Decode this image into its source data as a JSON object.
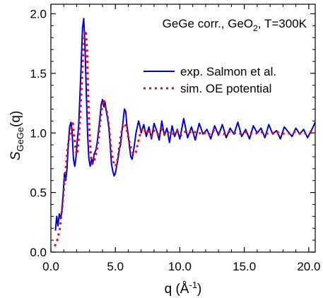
{
  "chart_data": {
    "type": "line",
    "annotation": {
      "prefix": "GeGe corr., GeO",
      "subscript": "2",
      "suffix": ", T=300K"
    },
    "xlabel": {
      "main": "q (Å",
      "sup": "-1",
      "tail": ")"
    },
    "ylabel": {
      "main": "S",
      "sub": "GeGe",
      "tail": "(q)"
    },
    "xlim": [
      0,
      20.5
    ],
    "ylim": [
      0,
      2.08
    ],
    "xticks": [
      0,
      5,
      10,
      15,
      20
    ],
    "xtick_labels": [
      "0.0",
      "5.0",
      "10.0",
      "15.0",
      "20.0"
    ],
    "yticks": [
      0,
      0.5,
      1.0,
      1.5,
      2.0
    ],
    "ytick_labels": [
      "0.0",
      "0.5",
      "1.0",
      "1.5",
      "2.0"
    ],
    "grid": false,
    "legend_placement": "right",
    "series": [
      {
        "name": "exp. Salmon et al.",
        "color": "#0000dd",
        "style": "solid",
        "x": [
          0.35,
          0.45,
          0.55,
          0.65,
          0.75,
          0.85,
          0.95,
          1.05,
          1.15,
          1.25,
          1.35,
          1.45,
          1.55,
          1.65,
          1.75,
          1.85,
          1.95,
          2.05,
          2.15,
          2.25,
          2.35,
          2.45,
          2.55,
          2.65,
          2.75,
          2.85,
          2.95,
          3.05,
          3.15,
          3.25,
          3.35,
          3.5,
          3.6,
          3.7,
          3.8,
          3.9,
          4.0,
          4.1,
          4.2,
          4.3,
          4.4,
          4.5,
          4.6,
          4.7,
          4.8,
          4.9,
          5.0,
          5.1,
          5.2,
          5.3,
          5.4,
          5.5,
          5.6,
          5.7,
          5.8,
          5.9,
          6.0,
          6.1,
          6.2,
          6.3,
          6.4,
          6.5,
          6.6,
          6.7,
          6.8,
          6.9,
          7.0,
          7.2,
          7.4,
          7.6,
          7.8,
          8.0,
          8.2,
          8.4,
          8.6,
          8.8,
          9.0,
          9.2,
          9.4,
          9.6,
          9.8,
          10.0,
          10.3,
          10.6,
          10.9,
          11.2,
          11.5,
          11.8,
          12.1,
          12.4,
          12.7,
          13.0,
          13.3,
          13.6,
          13.9,
          14.2,
          14.5,
          14.8,
          15.1,
          15.4,
          15.7,
          16.0,
          16.3,
          16.6,
          16.9,
          17.2,
          17.5,
          17.8,
          18.1,
          18.4,
          18.7,
          19.0,
          19.3,
          19.6,
          19.9,
          20.2,
          20.5
        ],
        "y": [
          0.18,
          0.3,
          0.22,
          0.32,
          0.28,
          0.34,
          0.48,
          0.66,
          0.6,
          0.7,
          0.9,
          1.05,
          1.09,
          1.0,
          0.78,
          0.72,
          0.8,
          0.94,
          1.05,
          1.3,
          1.58,
          1.88,
          1.96,
          1.72,
          1.32,
          0.98,
          0.78,
          0.72,
          0.78,
          0.74,
          0.82,
          0.86,
          0.93,
          1.02,
          1.12,
          1.24,
          1.28,
          1.22,
          1.26,
          1.18,
          1.12,
          1.04,
          0.9,
          0.74,
          0.68,
          0.64,
          0.66,
          0.72,
          0.78,
          0.86,
          0.9,
          1.0,
          1.1,
          1.2,
          1.18,
          1.06,
          0.98,
          0.88,
          0.8,
          0.78,
          0.84,
          0.92,
          1.0,
          1.05,
          1.1,
          1.06,
          1.0,
          1.07,
          0.97,
          1.05,
          0.95,
          1.08,
          1.02,
          0.94,
          1.1,
          0.98,
          1.04,
          0.92,
          1.06,
          0.97,
          1.03,
          0.95,
          1.12,
          0.96,
          1.05,
          0.94,
          1.08,
          0.99,
          1.03,
          0.95,
          1.06,
          0.98,
          1.07,
          0.96,
          1.04,
          0.99,
          1.09,
          0.97,
          1.03,
          0.95,
          1.06,
          1.0,
          1.04,
          0.96,
          1.07,
          0.99,
          1.02,
          0.95,
          1.05,
          1.01,
          0.97,
          1.04,
          0.99,
          1.03,
          0.96,
          1.02,
          1.09
        ]
      },
      {
        "name": "sim. OE potential",
        "color": "#ff0000",
        "style": "dotted",
        "x": [
          0.3,
          0.5,
          0.7,
          0.9,
          1.1,
          1.3,
          1.5,
          1.7,
          1.9,
          2.0,
          2.1,
          2.2,
          2.3,
          2.4,
          2.5,
          2.6,
          2.7,
          2.8,
          2.9,
          3.0,
          3.1,
          3.2,
          3.3,
          3.4,
          3.5,
          3.6,
          3.7,
          3.8,
          3.9,
          4.0,
          4.1,
          4.2,
          4.3,
          4.4,
          4.5,
          4.6,
          4.7,
          4.8,
          4.9,
          5.0,
          5.1,
          5.2,
          5.3,
          5.4,
          5.5,
          5.6,
          5.7,
          5.8,
          5.9,
          6.0,
          6.2,
          6.4,
          6.6,
          6.8,
          7.0,
          7.2,
          7.4,
          7.6,
          7.8,
          8.0,
          8.3,
          8.6,
          8.9,
          9.2,
          9.5,
          9.8,
          10.1,
          10.4,
          10.7,
          11.0,
          11.4,
          11.8,
          12.2,
          12.6,
          13.0,
          13.4,
          13.8,
          14.2,
          14.6,
          15.0,
          15.4,
          15.8,
          16.2,
          16.6,
          17.0,
          17.4,
          17.8,
          18.2,
          18.6,
          19.0,
          19.4,
          19.8,
          20.2,
          20.5
        ],
        "y": [
          0.05,
          0.1,
          0.2,
          0.4,
          0.64,
          0.88,
          1.0,
          1.08,
          0.88,
          0.82,
          0.86,
          1.0,
          1.2,
          1.42,
          1.65,
          1.82,
          1.86,
          1.7,
          1.3,
          1.0,
          0.8,
          0.74,
          0.76,
          0.78,
          0.82,
          0.88,
          0.96,
          1.06,
          1.16,
          1.24,
          1.28,
          1.22,
          1.2,
          1.14,
          1.05,
          0.95,
          0.85,
          0.78,
          0.74,
          0.72,
          0.74,
          0.8,
          0.88,
          0.96,
          1.02,
          1.06,
          1.08,
          1.06,
          1.02,
          0.96,
          0.88,
          0.82,
          0.84,
          0.94,
          1.02,
          1.04,
          0.99,
          1.03,
          0.97,
          1.02,
          0.99,
          1.03,
          0.98,
          1.01,
          0.99,
          1.02,
          0.98,
          1.01,
          1.0,
          1.02,
          0.99,
          1.01,
          0.98,
          1.02,
          1.0,
          0.99,
          1.01,
          1.0,
          0.99,
          1.01,
          1.0,
          0.99,
          1.01,
          1.0,
          0.99,
          1.01,
          1.0,
          0.99,
          1.0,
          1.01,
          0.99,
          1.0,
          1.01,
          1.0
        ]
      }
    ]
  }
}
